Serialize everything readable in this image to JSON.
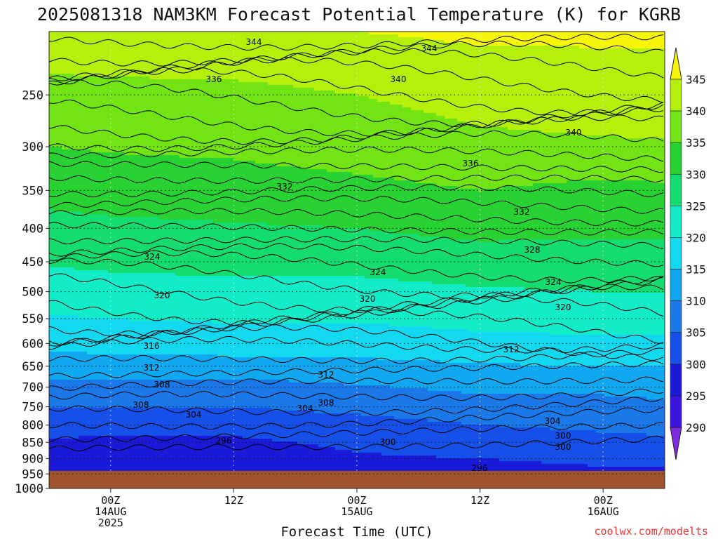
{
  "chart_data": {
    "type": "heatmap",
    "title": "2025081318 NAM3KM Forecast Potential Temperature (K) for KGRB",
    "xlabel": "Forecast Time (UTC)",
    "ylabel": "",
    "y_scale": "log",
    "y_reversed": true,
    "ylim": [
      1000,
      200
    ],
    "yticks": [
      250,
      300,
      350,
      400,
      450,
      500,
      550,
      600,
      650,
      700,
      750,
      800,
      850,
      900,
      950,
      1000
    ],
    "xlim": [
      "2025-08-13T18:00Z",
      "2025-08-16T06:00Z"
    ],
    "xticks": [
      {
        "time": "2025-08-14T00:00Z",
        "lines": [
          "00Z",
          "14AUG",
          "2025"
        ]
      },
      {
        "time": "2025-08-14T12:00Z",
        "lines": [
          "12Z"
        ]
      },
      {
        "time": "2025-08-15T00:00Z",
        "lines": [
          "00Z",
          "15AUG"
        ]
      },
      {
        "time": "2025-08-15T12:00Z",
        "lines": [
          "12Z"
        ]
      },
      {
        "time": "2025-08-16T00:00Z",
        "lines": [
          "00Z",
          "16AUG"
        ]
      }
    ],
    "grid": true,
    "colorbar": {
      "unit": "K",
      "levels": [
        290,
        295,
        300,
        305,
        310,
        315,
        320,
        325,
        330,
        335,
        340,
        345
      ],
      "colors": [
        "#7d2ae0",
        "#3a14e0",
        "#1a1ad8",
        "#1650e8",
        "#1a78e8",
        "#10a8f0",
        "#12d8f0",
        "#12ecc8",
        "#14dc6e",
        "#28d232",
        "#72e414",
        "#b4f00c",
        "#f6f50a"
      ],
      "extends": "both"
    },
    "contour_levels": [
      296,
      300,
      304,
      308,
      312,
      316,
      320,
      324,
      328,
      332,
      336,
      340,
      344
    ],
    "theta_profiles": [
      {
        "time": "2025-08-13T18:00Z",
        "pressure": [
          1000,
          950,
          900,
          850,
          800,
          750,
          700,
          650,
          600,
          550,
          500,
          450,
          400,
          350,
          300,
          250,
          200
        ],
        "theta": [
          297.5,
          297.8,
          298.2,
          299.5,
          301.5,
          305.5,
          308.5,
          312.5,
          316.5,
          319.5,
          322.5,
          325.5,
          328.5,
          331.5,
          335,
          337.5,
          345
        ]
      },
      {
        "time": "2025-08-14T00:00Z",
        "pressure": [
          1000,
          950,
          900,
          850,
          800,
          750,
          700,
          650,
          600,
          550,
          500,
          450,
          400,
          350,
          300,
          250,
          200
        ],
        "theta": [
          297.2,
          297.6,
          298,
          299.3,
          301.3,
          305.2,
          308.3,
          312.8,
          316.8,
          320,
          323,
          326,
          329,
          332,
          335.5,
          338,
          345
        ]
      },
      {
        "time": "2025-08-14T12:00Z",
        "pressure": [
          1000,
          950,
          900,
          850,
          800,
          750,
          700,
          650,
          600,
          550,
          500,
          450,
          400,
          350,
          300,
          250,
          200
        ],
        "theta": [
          296.5,
          297,
          297.8,
          299.2,
          301.5,
          305,
          308,
          313,
          317.5,
          320.5,
          323.5,
          326.5,
          329.5,
          332.5,
          336,
          338.5,
          345
        ]
      },
      {
        "time": "2025-08-15T00:00Z",
        "pressure": [
          1000,
          950,
          900,
          850,
          800,
          750,
          700,
          650,
          600,
          550,
          500,
          450,
          400,
          350,
          300,
          250,
          200
        ],
        "theta": [
          297.5,
          298.5,
          299.5,
          300.8,
          303,
          306.5,
          309.5,
          313.5,
          317.5,
          320.5,
          323.5,
          326.5,
          330,
          333.5,
          337.5,
          340,
          345
        ]
      },
      {
        "time": "2025-08-15T12:00Z",
        "pressure": [
          1000,
          950,
          900,
          850,
          800,
          750,
          700,
          650,
          600,
          550,
          500,
          450,
          400,
          350,
          300,
          250,
          200
        ],
        "theta": [
          296.2,
          298,
          300,
          302,
          305,
          308,
          311,
          314.5,
          318.5,
          321.5,
          324.5,
          327.5,
          331.5,
          335,
          339,
          341.5,
          346
        ]
      },
      {
        "time": "2025-08-16T00:00Z",
        "pressure": [
          1000,
          950,
          900,
          850,
          800,
          750,
          700,
          650,
          600,
          550,
          500,
          450,
          400,
          350,
          300,
          250,
          200
        ],
        "theta": [
          297,
          299,
          301,
          303.5,
          306,
          308.5,
          311,
          315,
          319,
          322,
          325,
          328,
          331,
          333.5,
          339.5,
          342,
          346
        ]
      },
      {
        "time": "2025-08-16T06:00Z",
        "pressure": [
          1000,
          950,
          900,
          850,
          800,
          750,
          700,
          650,
          600,
          550,
          500,
          450,
          400,
          350,
          300,
          250,
          200
        ],
        "theta": [
          297.5,
          299,
          301.5,
          304,
          306.5,
          309,
          311.5,
          315,
          319,
          322,
          325,
          328,
          331,
          334,
          339.5,
          342.5,
          346
        ]
      }
    ],
    "contour_labels": [
      "344",
      "344",
      "336",
      "340",
      "340",
      "336",
      "332",
      "332",
      "328",
      "324",
      "324",
      "324",
      "320",
      "320",
      "320",
      "316",
      "312",
      "312",
      "312",
      "308",
      "308",
      "308",
      "304",
      "304",
      "304",
      "300",
      "300",
      "300",
      "296",
      "296"
    ],
    "watermark": "coolwx.com/modelts"
  }
}
